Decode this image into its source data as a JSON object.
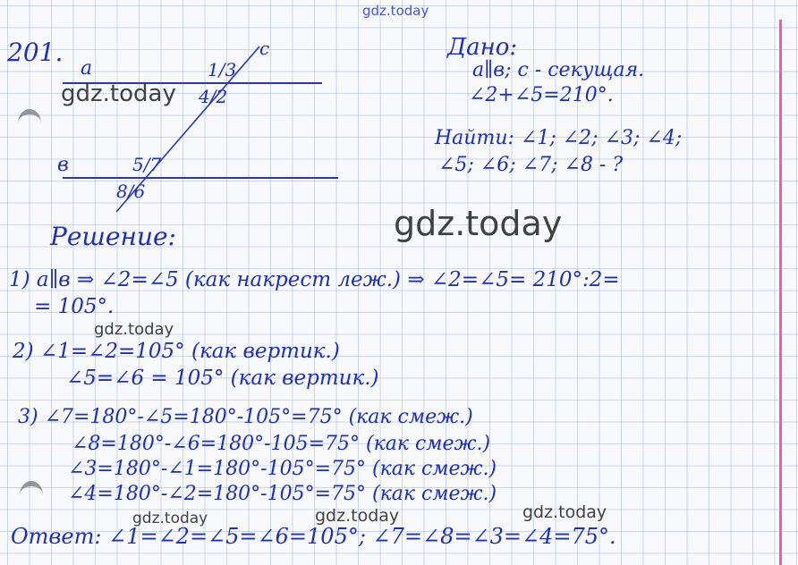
{
  "watermark": "gdz.today",
  "problem_number": "201.",
  "diagram": {
    "line_a": "a",
    "line_b": "в",
    "line_c": "c",
    "angles_top": "1/3",
    "angles_top_below": "4/2",
    "angles_bottom": "5/7",
    "angles_bottom_below": "8/6"
  },
  "given": {
    "heading": "Дано:",
    "line1": "a∥в; c - секущая.",
    "line2": "∠2+∠5=210°."
  },
  "find": {
    "line1": "Найти: ∠1; ∠2; ∠3; ∠4;",
    "line2": "∠5; ∠6; ∠7; ∠8 - ?"
  },
  "solution": {
    "heading": "Решение:",
    "step1": "1) a∥в ⇒ ∠2=∠5 (как накрест леж.) ⇒ ∠2=∠5= 210°:2=",
    "step1b": "= 105°.",
    "step2a": "2) ∠1=∠2=105° (как вертик.)",
    "step2b": "∠5=∠6 = 105° (как вертик.)",
    "step3a": "3)  ∠7=180°-∠5=180°-105°=75° (как смеж.)",
    "step3b": "∠8=180°-∠6=180°-105=75° (как смеж.)",
    "step3c": "∠3=180°-∠1=180°-105°=75° (как смеж.)",
    "step3d": "∠4=180°-∠2=180°-105°=75° (как смеж.)"
  },
  "answer": "Ответ: ∠1=∠2=∠5=∠6=105°; ∠7=∠8=∠3=∠4=75°."
}
